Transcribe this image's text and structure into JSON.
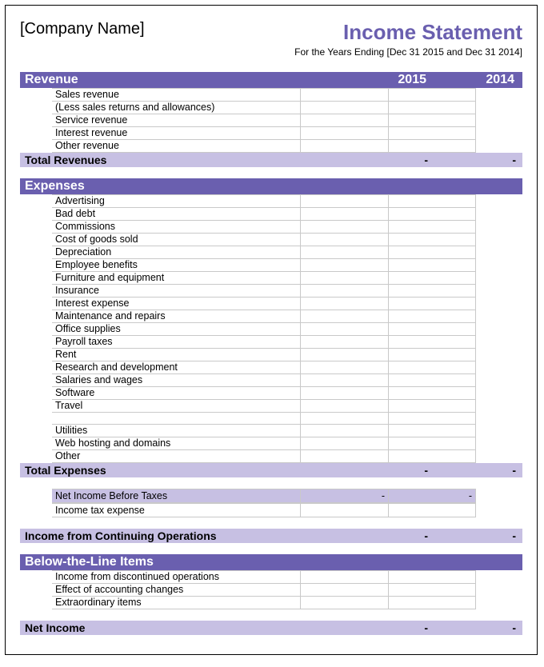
{
  "colors": {
    "dark_purple": "#6a5faf",
    "light_purple": "#c7c0e3",
    "title_purple": "#6a5faf",
    "border_gray": "#c9c9c9",
    "black": "#000000",
    "white": "#ffffff"
  },
  "header": {
    "company": "[Company Name]",
    "title": "Income Statement",
    "subtitle": "For the Years Ending [Dec 31 2015 and Dec 31 2014]"
  },
  "years": [
    "2015",
    "2014"
  ],
  "revenue": {
    "heading": "Revenue",
    "total_label": "Total Revenues",
    "total_values": [
      "-",
      "-"
    ],
    "items": [
      {
        "label": "Sales revenue",
        "v1": "",
        "v2": ""
      },
      {
        "label": "(Less sales returns and allowances)",
        "v1": "",
        "v2": ""
      },
      {
        "label": "Service revenue",
        "v1": "",
        "v2": ""
      },
      {
        "label": "Interest revenue",
        "v1": "",
        "v2": ""
      },
      {
        "label": "Other revenue",
        "v1": "",
        "v2": ""
      }
    ]
  },
  "expenses": {
    "heading": "Expenses",
    "total_label": "Total Expenses",
    "total_values": [
      "-",
      "-"
    ],
    "items": [
      {
        "label": "Advertising",
        "v1": "",
        "v2": ""
      },
      {
        "label": "Bad debt",
        "v1": "",
        "v2": ""
      },
      {
        "label": "Commissions",
        "v1": "",
        "v2": ""
      },
      {
        "label": "Cost of goods sold",
        "v1": "",
        "v2": ""
      },
      {
        "label": "Depreciation",
        "v1": "",
        "v2": ""
      },
      {
        "label": "Employee benefits",
        "v1": "",
        "v2": ""
      },
      {
        "label": "Furniture and equipment",
        "v1": "",
        "v2": ""
      },
      {
        "label": "Insurance",
        "v1": "",
        "v2": ""
      },
      {
        "label": "Interest expense",
        "v1": "",
        "v2": ""
      },
      {
        "label": "Maintenance and repairs",
        "v1": "",
        "v2": ""
      },
      {
        "label": "Office supplies",
        "v1": "",
        "v2": ""
      },
      {
        "label": "Payroll taxes",
        "v1": "",
        "v2": ""
      },
      {
        "label": "Rent",
        "v1": "",
        "v2": ""
      },
      {
        "label": "Research and development",
        "v1": "",
        "v2": ""
      },
      {
        "label": "Salaries and wages",
        "v1": "",
        "v2": ""
      },
      {
        "label": "Software",
        "v1": "",
        "v2": ""
      },
      {
        "label": "Travel",
        "v1": "",
        "v2": ""
      },
      {
        "label": "",
        "v1": "",
        "v2": ""
      },
      {
        "label": "Utilities",
        "v1": "",
        "v2": ""
      },
      {
        "label": "Web hosting and domains",
        "v1": "",
        "v2": ""
      },
      {
        "label": "Other",
        "v1": "",
        "v2": ""
      }
    ]
  },
  "net_before": {
    "items": [
      {
        "label": "Net Income Before Taxes",
        "v1": "-",
        "v2": "-",
        "shaded": true
      },
      {
        "label": "Income tax expense",
        "v1": "",
        "v2": "",
        "shaded": false
      }
    ]
  },
  "continuing": {
    "label": "Income from Continuing Operations",
    "values": [
      "-",
      "-"
    ]
  },
  "below_line": {
    "heading": "Below-the-Line Items",
    "items": [
      {
        "label": "Income from discontinued operations",
        "v1": "",
        "v2": ""
      },
      {
        "label": "Effect of accounting changes",
        "v1": "",
        "v2": ""
      },
      {
        "label": "Extraordinary items",
        "v1": "",
        "v2": ""
      }
    ]
  },
  "net_income": {
    "label": "Net Income",
    "values": [
      "-",
      "-"
    ]
  }
}
